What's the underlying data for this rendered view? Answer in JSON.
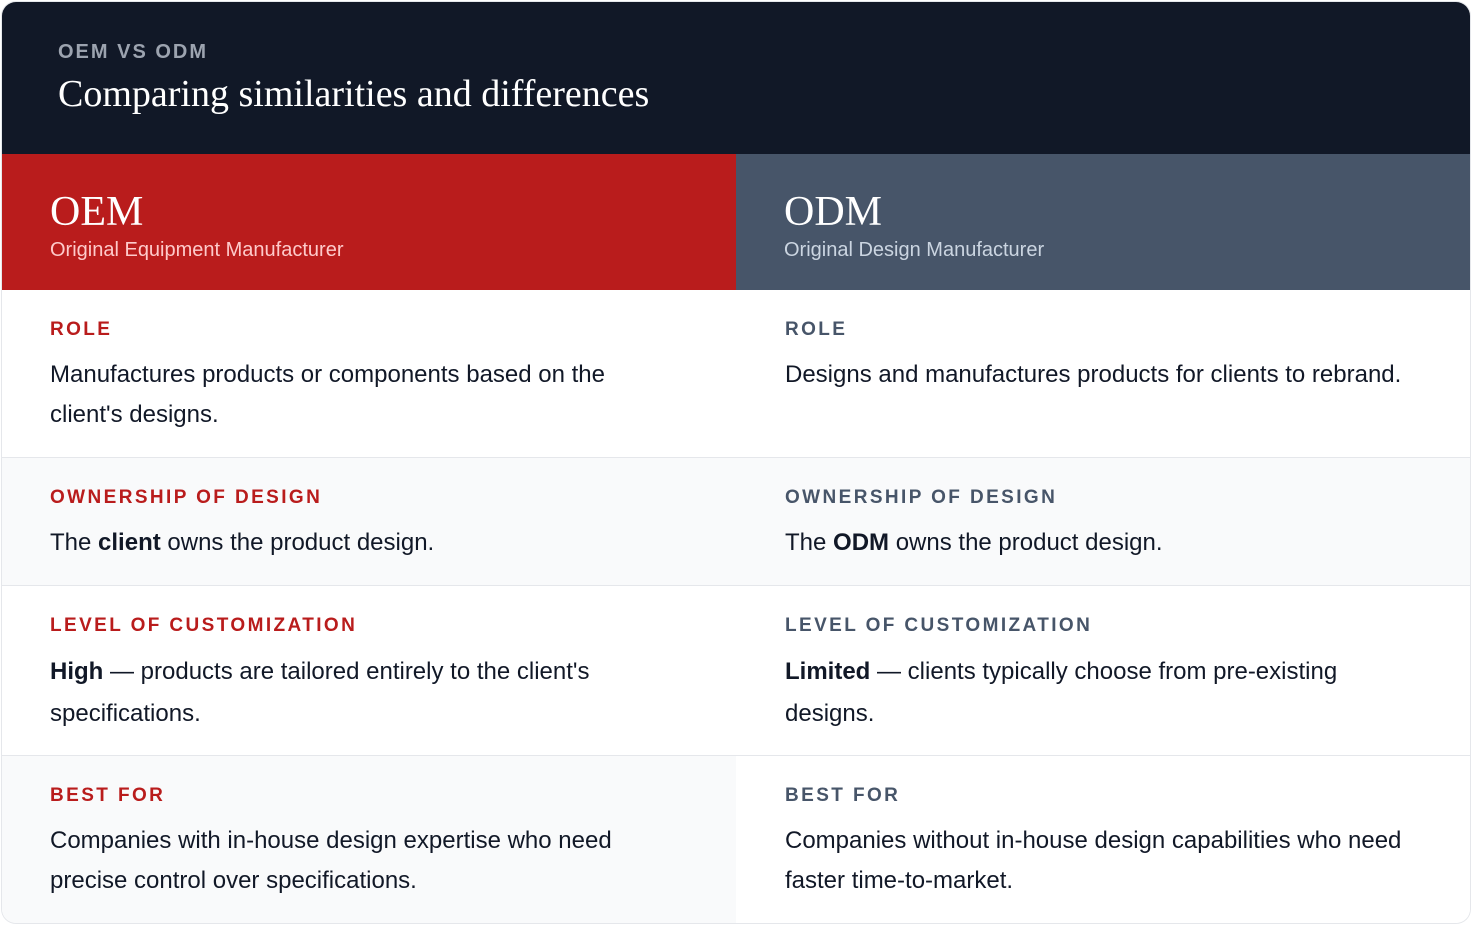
{
  "header": {
    "eyebrow": "OEM VS ODM",
    "title": "Comparing similarities and differences"
  },
  "columns": [
    {
      "name": "OEM",
      "subtitle": "Original Equipment Manufacturer",
      "accent": "#b91c1c",
      "rows": [
        {
          "label": "ROLE",
          "bold": "",
          "text": "Manufactures products or components based on the client's designs."
        },
        {
          "label": "OWNERSHIP OF DESIGN",
          "prefix": "The ",
          "bold": "client",
          "text": " owns the product design."
        },
        {
          "label": "LEVEL OF CUSTOMIZATION",
          "bold": "High",
          "text": " — products are tailored entirely to the client's specifications."
        },
        {
          "label": "BEST FOR",
          "bold": "",
          "text": "Companies with in-house design expertise who need precise control over specifications."
        }
      ]
    },
    {
      "name": "ODM",
      "subtitle": "Original Design Manufacturer",
      "accent": "#475569",
      "rows": [
        {
          "label": "ROLE",
          "bold": "",
          "text": "Designs and manufactures products for clients to rebrand."
        },
        {
          "label": "OWNERSHIP OF DESIGN",
          "prefix": "The ",
          "bold": "ODM",
          "text": " owns the product design."
        },
        {
          "label": "LEVEL OF CUSTOMIZATION",
          "bold": "Limited",
          "text": " — clients typically choose from pre-existing designs."
        },
        {
          "label": "BEST FOR",
          "bold": "",
          "text": "Companies without in-house design capabilities who need faster time-to-market."
        }
      ]
    }
  ]
}
